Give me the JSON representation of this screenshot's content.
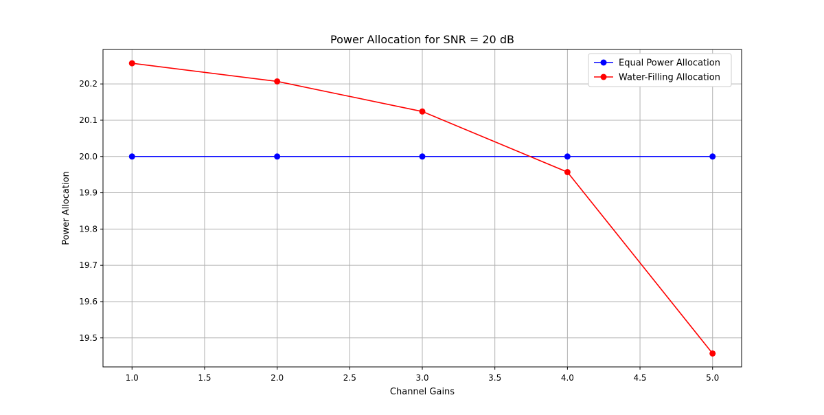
{
  "chart_data": {
    "type": "line",
    "title": "Power Allocation for SNR = 20 dB",
    "xlabel": "Channel Gains",
    "ylabel": "Power Allocation",
    "x": [
      1.0,
      2.0,
      3.0,
      4.0,
      5.0
    ],
    "xlim": [
      0.8,
      5.2
    ],
    "ylim": [
      19.42,
      20.295
    ],
    "xticks": [
      "1.0",
      "1.5",
      "2.0",
      "2.5",
      "3.0",
      "3.5",
      "4.0",
      "4.5",
      "5.0"
    ],
    "yticks": [
      "19.5",
      "19.6",
      "19.7",
      "19.8",
      "19.9",
      "20.0",
      "20.1",
      "20.2"
    ],
    "grid": true,
    "legend_position": "top-right",
    "series": [
      {
        "name": "Equal Power Allocation",
        "color": "#0000ff",
        "marker": "circle",
        "values": [
          20.0,
          20.0,
          20.0,
          20.0,
          20.0
        ]
      },
      {
        "name": "Water-Filling Allocation",
        "color": "#ff0000",
        "marker": "circle",
        "values": [
          20.257,
          20.207,
          20.124,
          19.957,
          19.457
        ]
      }
    ]
  }
}
